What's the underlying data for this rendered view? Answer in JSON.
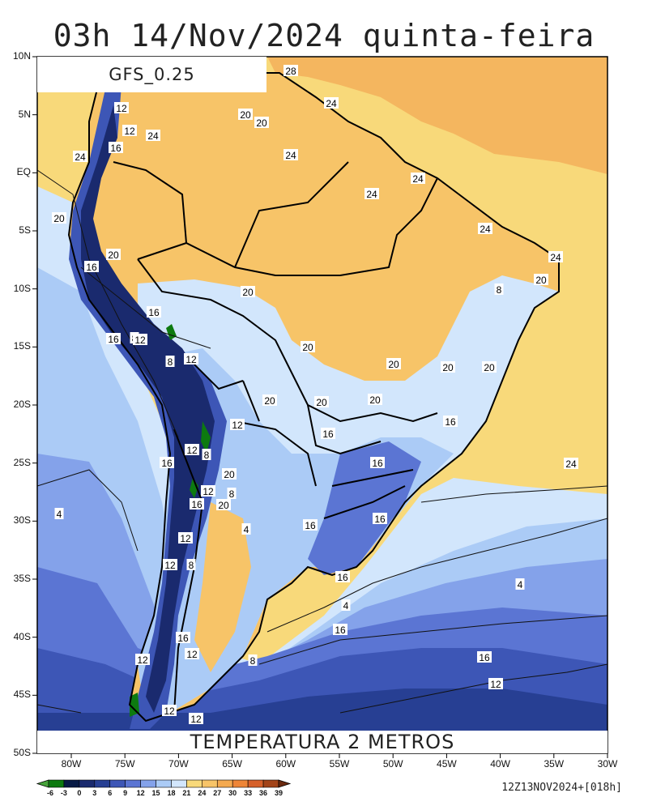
{
  "title": "03h 14/Nov/2024 quinta-feira",
  "model_label": "GFS_0.25",
  "variable_label": "TEMPERATURA 2 METROS",
  "run_info": "12Z13NOV2024+[018h]",
  "lat_labels": [
    "10N",
    "5N",
    "EQ",
    "5S",
    "10S",
    "15S",
    "20S",
    "25S",
    "30S",
    "35S",
    "40S",
    "45S",
    "50S"
  ],
  "lon_labels": [
    "80W",
    "75W",
    "70W",
    "65W",
    "60W",
    "55W",
    "50W",
    "45W",
    "40W",
    "35W",
    "30W"
  ],
  "colorbar": {
    "ticks": [
      "-6",
      "-3",
      "0",
      "3",
      "6",
      "9",
      "12",
      "15",
      "18",
      "21",
      "24",
      "27",
      "30",
      "33",
      "36",
      "39"
    ],
    "colors": [
      "#46a33a",
      "#0d7a10",
      "#081a45",
      "#1a2a6e",
      "#273f93",
      "#3d56b6",
      "#5b75d3",
      "#84a2ea",
      "#abcbf6",
      "#d2e6fc",
      "#f8d97a",
      "#f7c468",
      "#f4a94f",
      "#ee8537",
      "#d6602a",
      "#a34419",
      "#6b2a10"
    ]
  },
  "contour_labels": [
    "28",
    "24",
    "24",
    "24",
    "24",
    "24",
    "24",
    "24",
    "24",
    "24",
    "12",
    "12",
    "16",
    "20",
    "20",
    "20",
    "20",
    "20",
    "20",
    "20",
    "20",
    "20",
    "20",
    "20",
    "20",
    "20",
    "8",
    "16",
    "16",
    "16",
    "16",
    "16",
    "16",
    "16",
    "16",
    "16",
    "16",
    "16",
    "4",
    "4",
    "4",
    "8",
    "8",
    "8",
    "8",
    "12",
    "12",
    "12",
    "12",
    "12",
    "12",
    "12",
    "12",
    "12",
    "12",
    "12",
    "16",
    "16",
    "16",
    "20",
    "20",
    "8",
    "4",
    "8",
    "12"
  ],
  "colors": {
    "ocean_warm": "#f8d97a",
    "ocean_north": "#f4b65f",
    "land_warm": "#f7c468",
    "cool1": "#d2e6fc",
    "cool2": "#abcbf6",
    "cool3": "#84a2ea",
    "cool4": "#5b75d3",
    "cool5": "#3d56b6",
    "cool6": "#273f93",
    "dark": "#1a2a6e",
    "green": "#0d7a10"
  }
}
